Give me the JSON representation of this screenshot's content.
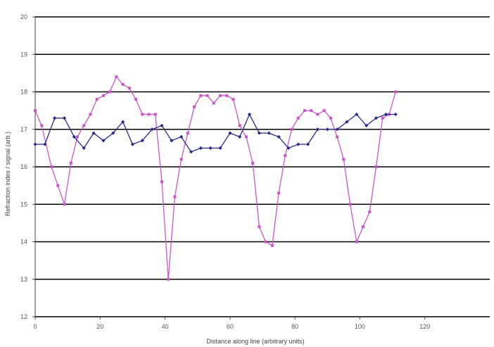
{
  "chart_data": {
    "type": "line",
    "title": "",
    "xlabel": "Distance along line (arbitrary units)",
    "ylabel": "Refraction index / signal (arb.)",
    "xlim": [
      0,
      140
    ],
    "ylim": [
      12,
      20
    ],
    "x_ticks": [
      "0",
      "20",
      "40",
      "60",
      "80",
      "100",
      "120"
    ],
    "y_ticks": [
      "12",
      "13",
      "14",
      "15",
      "16",
      "17",
      "18",
      "19",
      "20"
    ],
    "grid": "horizontal",
    "series": [
      {
        "color": "#cc55cc",
        "marker": "square",
        "x": [
          0,
          2,
          5,
          7,
          9,
          11,
          13,
          15,
          17,
          19,
          21,
          23,
          25,
          27,
          29,
          31,
          33,
          35,
          37,
          39,
          41,
          43,
          45,
          47,
          49,
          51,
          53,
          55,
          57,
          59,
          61,
          63,
          65,
          67,
          69,
          71,
          73,
          75,
          77,
          79,
          81,
          83,
          85,
          87,
          89,
          91,
          93,
          95,
          97,
          99,
          101,
          103,
          105,
          107,
          109,
          111
        ],
        "y": [
          17.5,
          17.1,
          16.0,
          15.5,
          15.0,
          16.1,
          16.8,
          17.1,
          17.4,
          17.8,
          17.9,
          18.0,
          18.4,
          18.2,
          18.1,
          17.8,
          17.4,
          17.4,
          17.4,
          15.6,
          13.0,
          15.2,
          16.2,
          16.9,
          17.6,
          17.9,
          17.9,
          17.7,
          17.9,
          17.9,
          17.8,
          17.1,
          16.8,
          16.1,
          14.4,
          14.0,
          13.9,
          15.3,
          16.3,
          17.0,
          17.3,
          17.5,
          17.5,
          17.4,
          17.5,
          17.3,
          16.8,
          16.2,
          15.0,
          14.0,
          14.4,
          14.8,
          16.0,
          17.3,
          17.4,
          18.0
        ]
      },
      {
        "color": "#2a2a8a",
        "marker": "diamond",
        "x": [
          0,
          3,
          6,
          9,
          12,
          15,
          18,
          21,
          24,
          27,
          30,
          33,
          36,
          39,
          42,
          45,
          48,
          51,
          54,
          57,
          60,
          63,
          66,
          69,
          72,
          75,
          78,
          81,
          84,
          87,
          90,
          93,
          96,
          99,
          102,
          105,
          108,
          111
        ],
        "y": [
          16.6,
          16.6,
          17.3,
          17.3,
          16.8,
          16.5,
          16.9,
          16.7,
          16.9,
          17.2,
          16.6,
          16.7,
          17.0,
          17.1,
          16.7,
          16.8,
          16.4,
          16.5,
          16.5,
          16.5,
          16.9,
          16.8,
          17.4,
          16.9,
          16.9,
          16.8,
          16.5,
          16.6,
          16.6,
          17.0,
          17.0,
          17.0,
          17.2,
          17.4,
          17.1,
          17.3,
          17.4,
          17.4
        ]
      }
    ]
  }
}
